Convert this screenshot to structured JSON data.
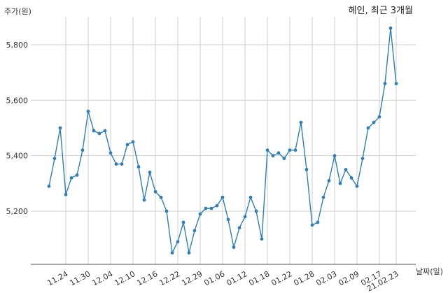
{
  "chart_data": {
    "type": "line",
    "title": "헤인, 최근 3개월",
    "ylabel": "주가(원)",
    "xlabel": "날짜(일)",
    "ylim": [
      5000,
      5900
    ],
    "yticks": [
      5200,
      5400,
      5600,
      5800
    ],
    "ytick_labels": [
      "5,200",
      "5,400",
      "5,600",
      "5,800"
    ],
    "grid": true,
    "xticks": [
      {
        "index": 3,
        "label": "11.24"
      },
      {
        "index": 7,
        "label": "11.30"
      },
      {
        "index": 11,
        "label": "12.04"
      },
      {
        "index": 15,
        "label": "12.10"
      },
      {
        "index": 19,
        "label": "12.16"
      },
      {
        "index": 23,
        "label": "12.22"
      },
      {
        "index": 27,
        "label": "12.29"
      },
      {
        "index": 31,
        "label": "01.06"
      },
      {
        "index": 35,
        "label": "01.12"
      },
      {
        "index": 39,
        "label": "01.18"
      },
      {
        "index": 43,
        "label": "01.22"
      },
      {
        "index": 47,
        "label": "01.28"
      },
      {
        "index": 51,
        "label": "02.03"
      },
      {
        "index": 55,
        "label": "02.09"
      },
      {
        "index": 59,
        "label": "02.17"
      },
      {
        "index": 62,
        "label": "21.02.23"
      }
    ],
    "series": [
      {
        "color": "#2f7fb3",
        "values": [
          5290,
          5390,
          5500,
          5260,
          5320,
          5330,
          5420,
          5560,
          5490,
          5480,
          5490,
          5410,
          5370,
          5370,
          5440,
          5450,
          5360,
          5240,
          5340,
          5270,
          5250,
          5200,
          5050,
          5090,
          5160,
          5050,
          5130,
          5190,
          5210,
          5210,
          5220,
          5250,
          5170,
          5070,
          5140,
          5180,
          5250,
          5200,
          5100,
          5420,
          5400,
          5410,
          5390,
          5420,
          5420,
          5520,
          5350,
          5150,
          5160,
          5250,
          5310,
          5400,
          5300,
          5350,
          5320,
          5290,
          5390,
          5500,
          5520,
          5540,
          5660,
          5860,
          5660
        ]
      }
    ]
  }
}
